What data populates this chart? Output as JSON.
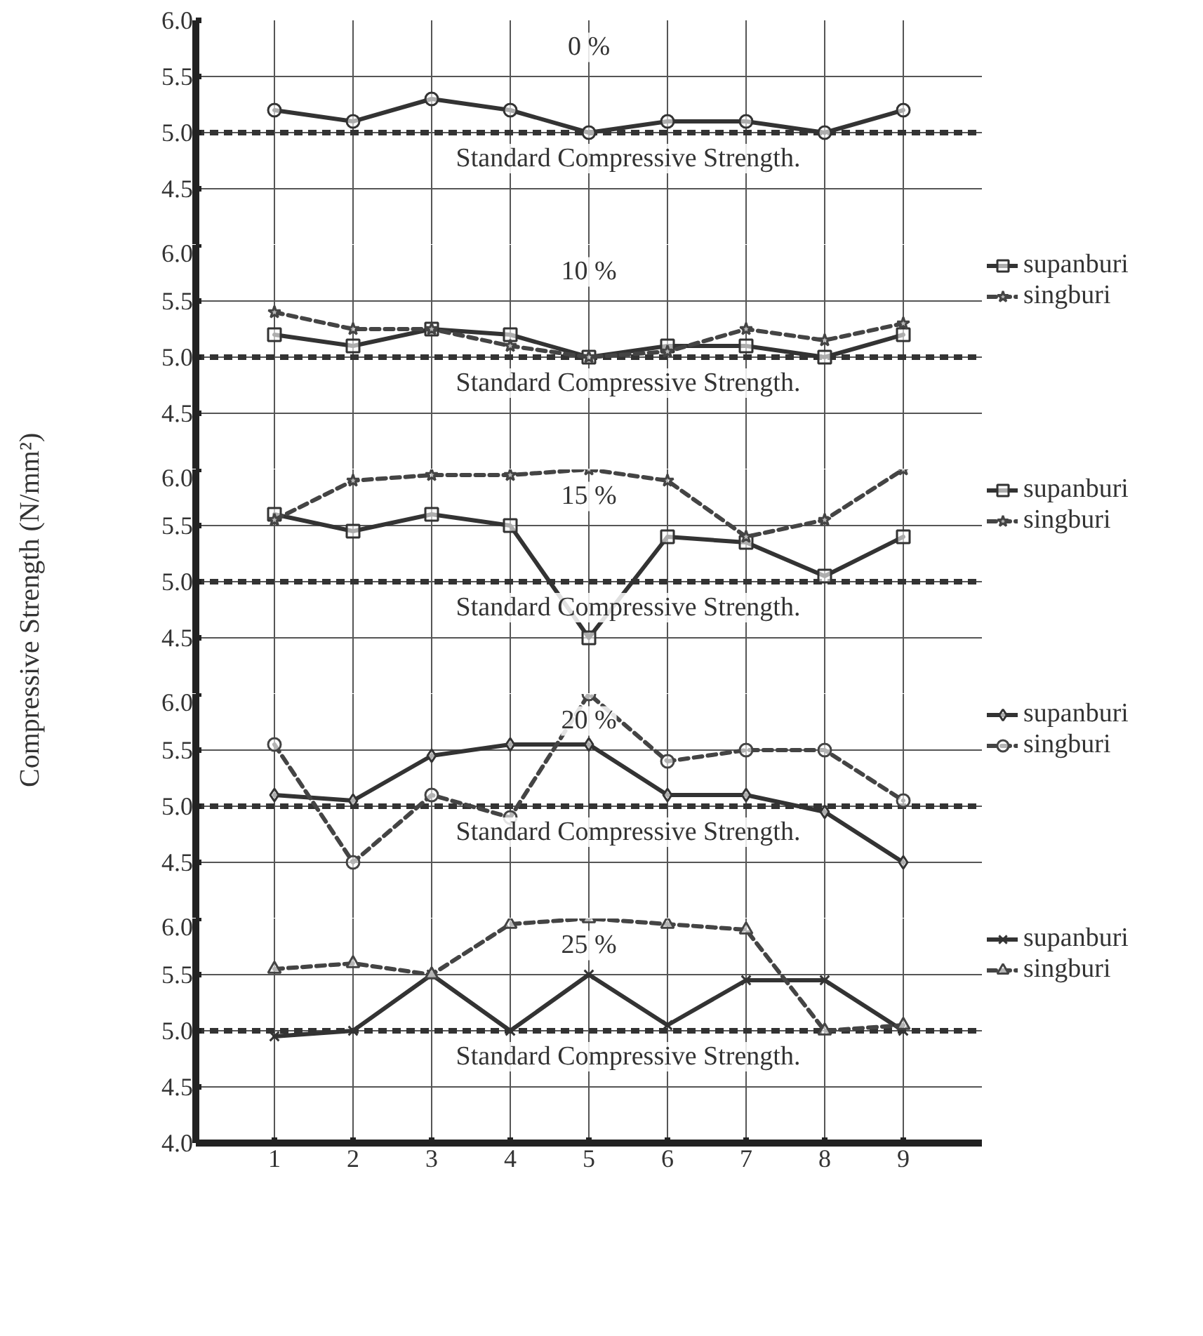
{
  "chart_data": [
    {
      "type": "line",
      "annotations": [
        "0 %"
      ],
      "x": [
        1,
        2,
        3,
        4,
        5,
        6,
        7,
        8,
        9
      ],
      "xlim": [
        0,
        10
      ],
      "xticks": [
        1,
        2,
        3,
        4,
        5,
        6,
        7,
        8,
        9
      ],
      "ylim": [
        4.0,
        6.0
      ],
      "yticks": [
        {
          "value": 4.5,
          "label": "4.5"
        },
        {
          "value": 5,
          "label": "5.0"
        },
        {
          "value": 5.5,
          "label": "5.5"
        },
        {
          "value": 6,
          "label": "6.0"
        }
      ],
      "tick_labels": "y",
      "grid": true,
      "ref_lines": [
        {
          "axis": "y",
          "value": 5.0,
          "label": "Standard Compressive Strength.",
          "line_style": "dashed"
        }
      ],
      "series": [
        {
          "color": "#333333",
          "marker": "circle",
          "line_style": "solid",
          "values": [
            5.2,
            5.1,
            5.3,
            5.2,
            5.0,
            5.1,
            5.1,
            5.0,
            5.2
          ]
        }
      ]
    },
    {
      "type": "line",
      "annotations": [
        "10 %"
      ],
      "x": [
        1,
        2,
        3,
        4,
        5,
        6,
        7,
        8,
        9
      ],
      "xlim": [
        0,
        10
      ],
      "xticks": [
        1,
        2,
        3,
        4,
        5,
        6,
        7,
        8,
        9
      ],
      "ylim": [
        4.0,
        6.0
      ],
      "yticks": [
        {
          "value": 4.5,
          "label": "4.5"
        },
        {
          "value": 5,
          "label": "5.0"
        },
        {
          "value": 5.5,
          "label": "5.5"
        },
        {
          "value": 6,
          "label": "6.0"
        }
      ],
      "tick_labels": "y",
      "grid": true,
      "legend": "right",
      "ref_lines": [
        {
          "axis": "y",
          "value": 5.0,
          "label": "Standard Compressive Strength.",
          "line_style": "dashed"
        }
      ],
      "series": [
        {
          "name": "supanburi",
          "color": "#333333",
          "marker": "square",
          "line_style": "solid",
          "values": [
            5.2,
            5.1,
            5.25,
            5.2,
            5.0,
            5.1,
            5.1,
            5.0,
            5.2
          ]
        },
        {
          "name": "singburi",
          "color": "#444444",
          "marker": "star",
          "line_style": "dashed",
          "values": [
            5.4,
            5.25,
            5.25,
            5.1,
            5.0,
            5.05,
            5.25,
            5.15,
            5.3
          ]
        }
      ]
    },
    {
      "type": "line",
      "ylabel": "Compressive Strength (N/mm²)",
      "annotations": [
        "15 %"
      ],
      "x": [
        1,
        2,
        3,
        4,
        5,
        6,
        7,
        8,
        9
      ],
      "xlim": [
        0,
        10
      ],
      "xticks": [
        1,
        2,
        3,
        4,
        5,
        6,
        7,
        8,
        9
      ],
      "ylim": [
        4.0,
        6.0
      ],
      "yticks": [
        {
          "value": 4.5,
          "label": "4.5"
        },
        {
          "value": 5,
          "label": "5.0"
        },
        {
          "value": 5.5,
          "label": "5.5"
        },
        {
          "value": 6,
          "label": "6.0"
        }
      ],
      "tick_labels": "y",
      "grid": true,
      "legend": "right",
      "ref_lines": [
        {
          "axis": "y",
          "value": 5.0,
          "label": "Standard Compressive Strength.",
          "line_style": "dashed"
        }
      ],
      "series": [
        {
          "name": "supanburi",
          "color": "#333333",
          "marker": "square",
          "line_style": "solid",
          "values": [
            5.6,
            5.45,
            5.6,
            5.5,
            4.5,
            5.4,
            5.35,
            5.05,
            5.4
          ]
        },
        {
          "name": "singburi",
          "color": "#444444",
          "marker": "star",
          "line_style": "dashed",
          "values": [
            5.55,
            5.9,
            5.95,
            5.95,
            6.0,
            5.9,
            5.4,
            5.55,
            6.0
          ]
        }
      ]
    },
    {
      "type": "line",
      "annotations": [
        "20 %"
      ],
      "x": [
        1,
        2,
        3,
        4,
        5,
        6,
        7,
        8,
        9
      ],
      "xlim": [
        0,
        10
      ],
      "xticks": [
        1,
        2,
        3,
        4,
        5,
        6,
        7,
        8,
        9
      ],
      "ylim": [
        4.0,
        6.0
      ],
      "yticks": [
        {
          "value": 4.5,
          "label": "4.5"
        },
        {
          "value": 5,
          "label": "5.0"
        },
        {
          "value": 5.5,
          "label": "5.5"
        },
        {
          "value": 6,
          "label": "6.0"
        }
      ],
      "tick_labels": "y",
      "grid": true,
      "legend": "right",
      "ref_lines": [
        {
          "axis": "y",
          "value": 5.0,
          "label": "Standard Compressive Strength.",
          "line_style": "dashed"
        }
      ],
      "series": [
        {
          "name": "supanburi",
          "color": "#333333",
          "marker": "diamond",
          "line_style": "solid",
          "values": [
            5.1,
            5.05,
            5.45,
            5.55,
            5.55,
            5.1,
            5.1,
            4.95,
            4.5
          ]
        },
        {
          "name": "singburi",
          "color": "#444444",
          "marker": "circle",
          "line_style": "dashed",
          "values": [
            5.55,
            4.5,
            5.1,
            4.9,
            6.0,
            5.4,
            5.5,
            5.5,
            5.05
          ]
        }
      ]
    },
    {
      "type": "line",
      "annotations": [
        "25 %"
      ],
      "x": [
        1,
        2,
        3,
        4,
        5,
        6,
        7,
        8,
        9
      ],
      "xlim": [
        0,
        10
      ],
      "xticks": [
        1,
        2,
        3,
        4,
        5,
        6,
        7,
        8,
        9
      ],
      "ylim": [
        4.0,
        6.0
      ],
      "yticks": [
        {
          "value": 4,
          "label": "4.0"
        },
        {
          "value": 4.5,
          "label": "4.5"
        },
        {
          "value": 5,
          "label": "5.0"
        },
        {
          "value": 5.5,
          "label": "5.5"
        },
        {
          "value": 6,
          "label": "6.0"
        }
      ],
      "grid": true,
      "legend": "right",
      "ref_lines": [
        {
          "axis": "y",
          "value": 5.0,
          "label": "Standard Compressive Strength.",
          "line_style": "dashed"
        }
      ],
      "series": [
        {
          "name": "supanburi",
          "color": "#333333",
          "marker": "cross",
          "line_style": "solid",
          "values": [
            4.95,
            5.0,
            5.5,
            5.0,
            5.5,
            5.05,
            5.45,
            5.45,
            5.0
          ]
        },
        {
          "name": "singburi",
          "color": "#444444",
          "marker": "triangle",
          "line_style": "dashed",
          "values": [
            5.55,
            5.6,
            5.5,
            5.95,
            6.0,
            5.95,
            5.9,
            5.0,
            5.05
          ]
        }
      ]
    }
  ]
}
